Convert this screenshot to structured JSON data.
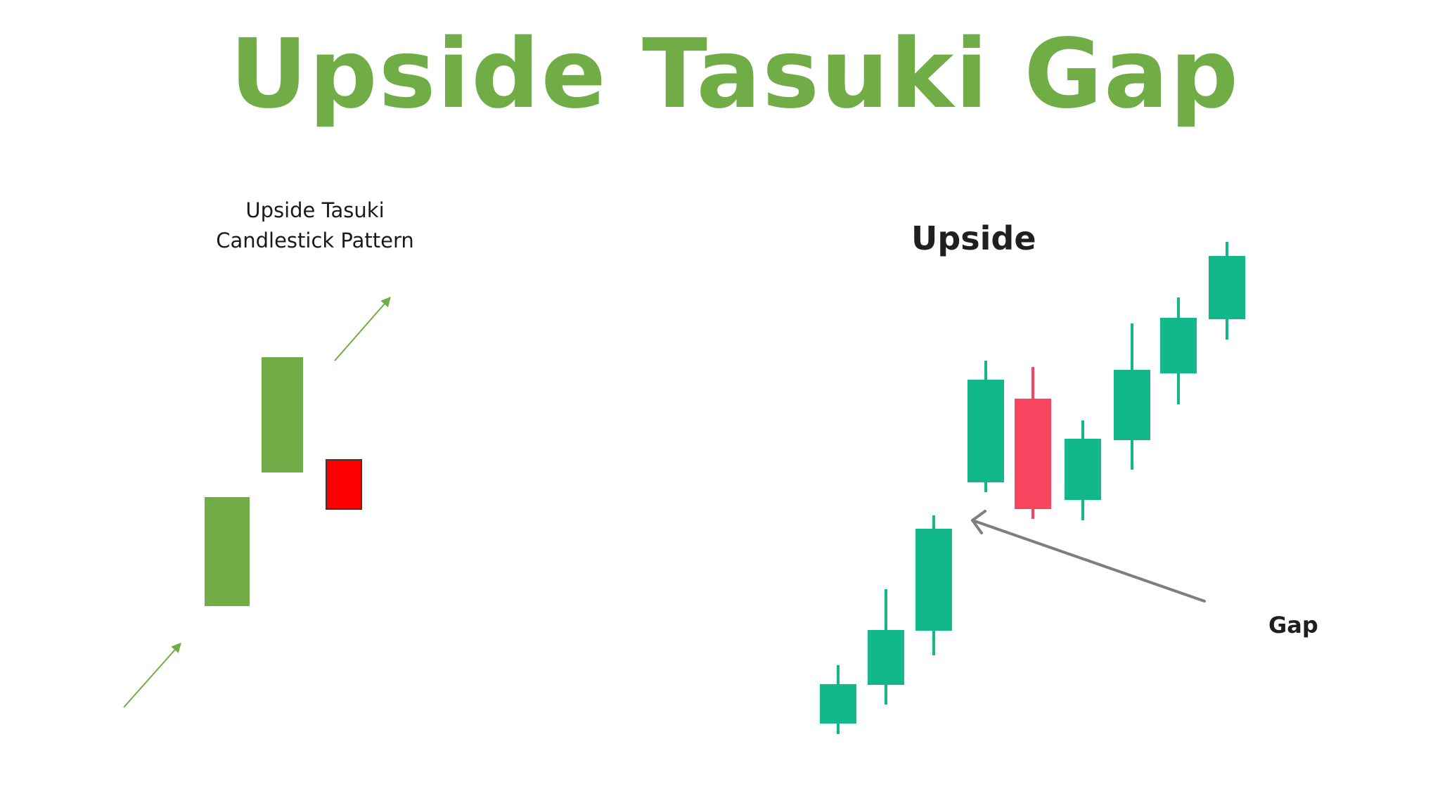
{
  "title": "Upside Tasuki Gap",
  "left_panel": {
    "caption_line1": "Upside Tasuki",
    "caption_line2": "Candlestick Pattern"
  },
  "right_panel": {
    "heading": "Upside",
    "gap_label": "Gap"
  },
  "colors": {
    "title": "#70ad47",
    "left_bull": "#70ad47",
    "left_bear": "#ff0000",
    "right_bull": "#12b88a",
    "right_bear": "#f74560",
    "arrow_gray": "#7d7d85",
    "trend_arrow": "#70ad47"
  },
  "icons": {
    "trend_arrow": "arrow-up-right-icon",
    "gap_pointer": "arrow-left-icon"
  }
}
